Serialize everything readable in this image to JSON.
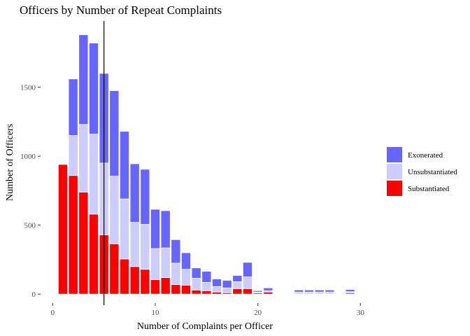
{
  "chart_data": {
    "type": "bar",
    "stacked": true,
    "title": "Officers by Number of Repeat Complaints",
    "xlabel": "Number of Complaints per Officer",
    "ylabel": "Number of Officers",
    "xlim": [
      -0.5,
      31
    ],
    "ylim": [
      -50,
      1980
    ],
    "xticks": [
      0,
      10,
      20,
      30
    ],
    "yticks": [
      0,
      500,
      1000,
      1500
    ],
    "grid": false,
    "legend": "right",
    "vline": 5,
    "x": [
      1,
      2,
      3,
      4,
      5,
      6,
      7,
      8,
      9,
      10,
      11,
      12,
      13,
      14,
      15,
      16,
      17,
      18,
      19,
      20,
      21,
      24,
      25,
      26,
      27,
      29
    ],
    "series": [
      {
        "name": "Substantiated",
        "color": "#ff0000",
        "values": [
          940,
          860,
          740,
          580,
          430,
          365,
          255,
          200,
          180,
          105,
          120,
          70,
          65,
          30,
          25,
          15,
          10,
          40,
          40,
          8,
          15,
          5,
          5,
          5,
          5,
          8
        ]
      },
      {
        "name": "Unsubstantiated",
        "color": "#ccccff",
        "values": [
          0,
          290,
          490,
          580,
          520,
          490,
          435,
          320,
          325,
          225,
          215,
          155,
          115,
          85,
          60,
          40,
          35,
          50,
          85,
          7,
          10,
          10,
          10,
          10,
          10,
          10
        ]
      },
      {
        "name": "Exonerated",
        "color": "#6666ff",
        "values": [
          0,
          410,
          650,
          660,
          650,
          620,
          490,
          425,
          400,
          285,
          270,
          170,
          120,
          75,
          80,
          55,
          55,
          45,
          105,
          10,
          20,
          15,
          15,
          15,
          15,
          15
        ]
      }
    ],
    "legend_order": [
      "Exonerated",
      "Unsubstantiated",
      "Substantiated"
    ]
  }
}
